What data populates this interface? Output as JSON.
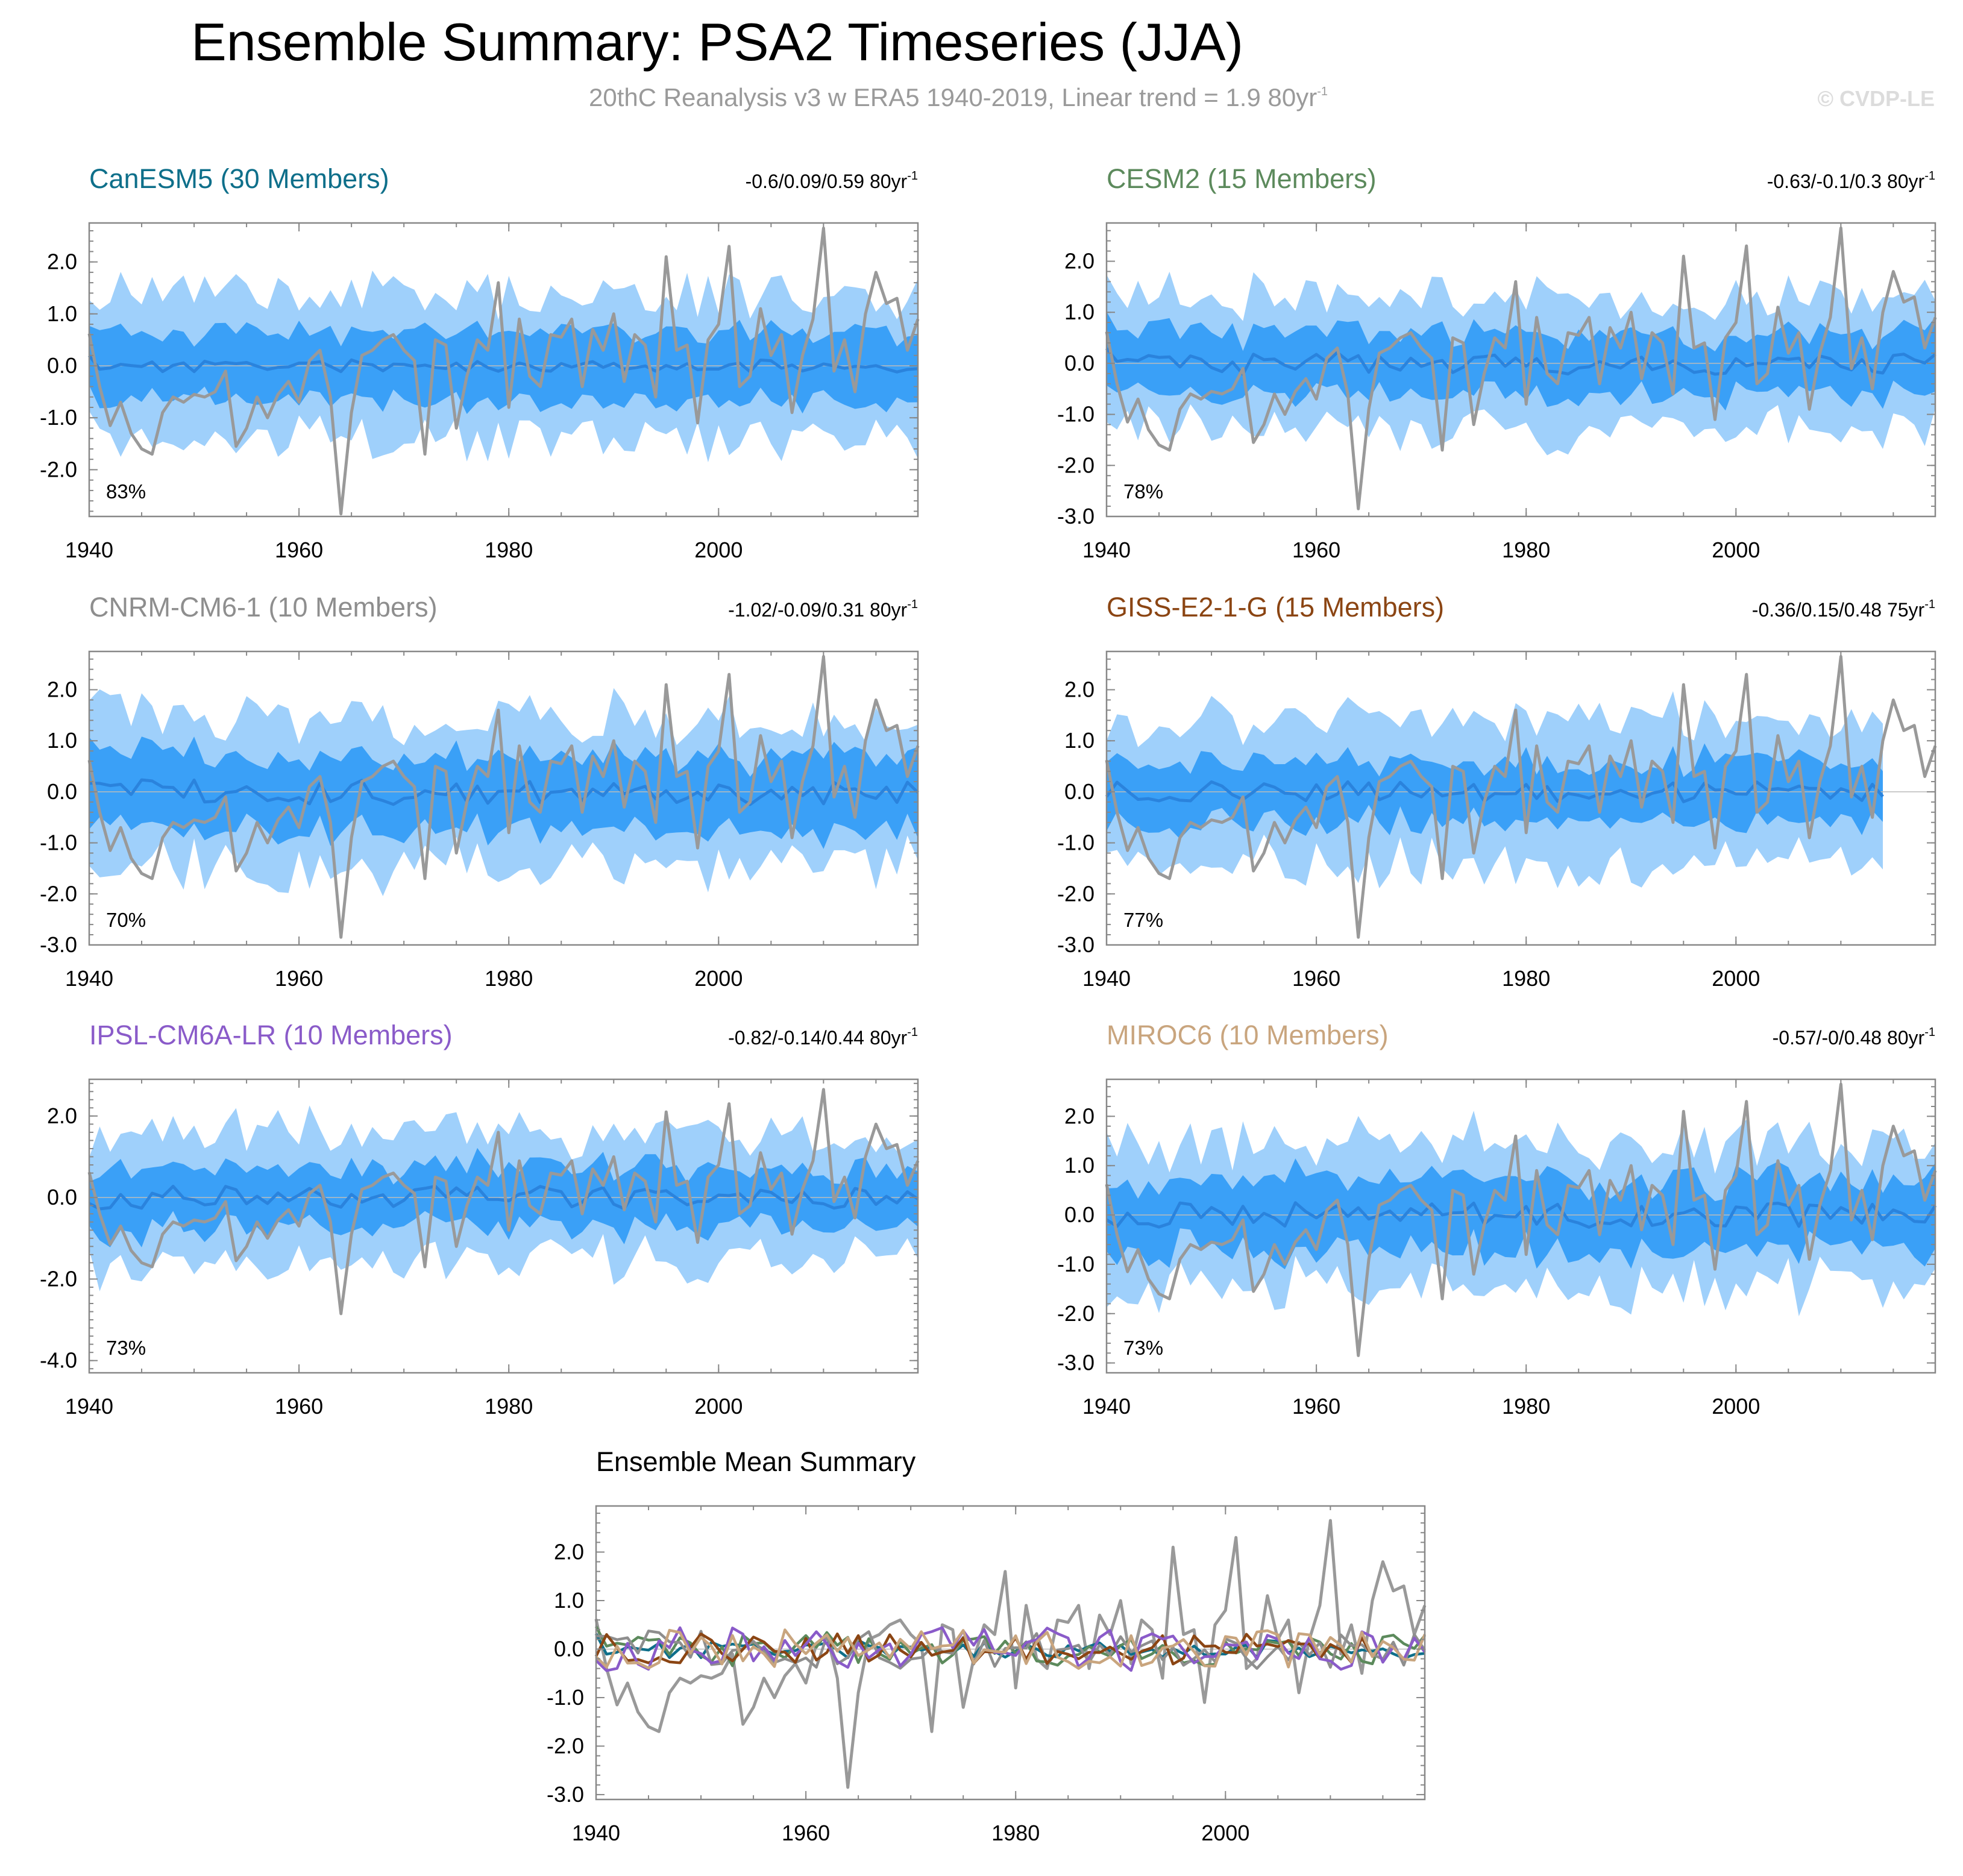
{
  "figure": {
    "title": "Ensemble Summary: PSA2 Timeseries (JJA)",
    "subtitle": "20thC Reanalysis v3 w ERA5 1940-2019, Linear trend = 1.9 80yr",
    "subtitle_sup": "-1",
    "watermark": "© CVDP-LE"
  },
  "colors": {
    "spread_outer": "#9fd0fb",
    "spread_inner": "#3aa0f7",
    "ensemble_mean": "#2a83dd",
    "observations": "#999999"
  },
  "chart_data": [
    {
      "type": "area",
      "title": "CanESM5 (30 Members)",
      "title_color": "#0e6f8a",
      "stat": "-0.6/0.09/0.59 80yr",
      "stat_sup": "-1",
      "percent_label": "83%",
      "x_range": [
        1940,
        2019
      ],
      "ylim": [
        -2.9,
        2.75
      ],
      "yticks": [
        2.0,
        1.0,
        0.0,
        -1.0,
        -2.0
      ],
      "ytick_labels": [
        "2.0",
        "1.0",
        "0.0",
        "-1.0",
        "-2.0"
      ],
      "xticks": [
        1940,
        1960,
        1980,
        2000
      ],
      "xtick_labels": [
        "1940",
        "1960",
        "1980",
        "2000"
      ],
      "seed": 11,
      "ens_mean_amp": 0.12,
      "inner_half": 0.65,
      "outer_half": 1.4,
      "xlabel": "",
      "ylabel": ""
    },
    {
      "type": "area",
      "title": "CESM2 (15 Members)",
      "title_color": "#5c8a5c",
      "stat": "-0.63/-0.1/0.3 80yr",
      "stat_sup": "-1",
      "percent_label": "78%",
      "x_range": [
        1940,
        2019
      ],
      "ylim": [
        -3.0,
        2.75
      ],
      "yticks": [
        2.0,
        1.0,
        0.0,
        -1.0,
        -2.0,
        -3.0
      ],
      "ytick_labels": [
        "2.0",
        "1.0",
        "0.0",
        "-1.0",
        "-2.0",
        "-3.0"
      ],
      "xticks": [
        1940,
        1960,
        1980,
        2000
      ],
      "xtick_labels": [
        "1940",
        "1960",
        "1980",
        "2000"
      ],
      "seed": 23,
      "ens_mean_amp": 0.22,
      "inner_half": 0.6,
      "outer_half": 1.3,
      "xlabel": "",
      "ylabel": ""
    },
    {
      "type": "area",
      "title": "CNRM-CM6-1 (10 Members)",
      "title_color": "#8e8e8e",
      "stat": "-1.02/-0.09/0.31 80yr",
      "stat_sup": "-1",
      "percent_label": "70%",
      "x_range": [
        1940,
        2019
      ],
      "ylim": [
        -3.0,
        2.75
      ],
      "yticks": [
        2.0,
        1.0,
        0.0,
        -1.0,
        -2.0,
        -3.0
      ],
      "ytick_labels": [
        "2.0",
        "1.0",
        "0.0",
        "-1.0",
        "-2.0",
        "-3.0"
      ],
      "xticks": [
        1940,
        1960,
        1980,
        2000
      ],
      "xtick_labels": [
        "1940",
        "1960",
        "1980",
        "2000"
      ],
      "seed": 37,
      "ens_mean_amp": 0.25,
      "inner_half": 0.7,
      "outer_half": 1.45,
      "xlabel": "",
      "ylabel": ""
    },
    {
      "type": "area",
      "title": "GISS-E2-1-G (15 Members)",
      "title_color": "#8b4513",
      "stat": "-0.36/0.15/0.48 75yr",
      "stat_sup": "-1",
      "percent_label": "77%",
      "x_range": [
        1940,
        2014
      ],
      "ylim": [
        -3.0,
        2.75
      ],
      "yticks": [
        2.0,
        1.0,
        0.0,
        -1.0,
        -2.0,
        -3.0
      ],
      "ytick_labels": [
        "2.0",
        "1.0",
        "0.0",
        "-1.0",
        "-2.0",
        "-3.0"
      ],
      "xticks": [
        1940,
        1960,
        1980,
        2000
      ],
      "xtick_labels": [
        "1940",
        "1960",
        "1980",
        "2000"
      ],
      "seed": 53,
      "ens_mean_amp": 0.2,
      "inner_half": 0.6,
      "outer_half": 1.4,
      "xlabel": "",
      "ylabel": ""
    },
    {
      "type": "area",
      "title": "IPSL-CM6A-LR (10 Members)",
      "title_color": "#8a5bc9",
      "stat": "-0.82/-0.14/0.44 80yr",
      "stat_sup": "-1",
      "percent_label": "73%",
      "x_range": [
        1940,
        2019
      ],
      "ylim": [
        -4.3,
        2.9
      ],
      "yticks": [
        2.0,
        0.0,
        -2.0,
        -4.0
      ],
      "ytick_labels": [
        "2.0",
        "0.0",
        "-2.0",
        "-4.0"
      ],
      "xticks": [
        1940,
        1960,
        1980,
        2000
      ],
      "xtick_labels": [
        "1940",
        "1960",
        "1980",
        "2000"
      ],
      "seed": 71,
      "ens_mean_amp": 0.28,
      "inner_half": 0.75,
      "outer_half": 1.6,
      "xlabel": "",
      "ylabel": ""
    },
    {
      "type": "area",
      "title": "MIROC6 (10 Members)",
      "title_color": "#c9a57e",
      "stat": "-0.57/-0/0.48 80yr",
      "stat_sup": "-1",
      "percent_label": "73%",
      "x_range": [
        1940,
        2019
      ],
      "ylim": [
        -3.2,
        2.75
      ],
      "yticks": [
        2.0,
        1.0,
        0.0,
        -1.0,
        -2.0,
        -3.0
      ],
      "ytick_labels": [
        "2.0",
        "1.0",
        "0.0",
        "-1.0",
        "-2.0",
        "-3.0"
      ],
      "xticks": [
        1940,
        1960,
        1980,
        2000
      ],
      "xtick_labels": [
        "1940",
        "1960",
        "1980",
        "2000"
      ],
      "seed": 89,
      "ens_mean_amp": 0.25,
      "inner_half": 0.7,
      "outer_half": 1.45,
      "xlabel": "",
      "ylabel": ""
    },
    {
      "type": "line",
      "title": "Ensemble Mean Summary",
      "title_color": "#000000",
      "x_range": [
        1940,
        2019
      ],
      "ylim": [
        -3.1,
        2.95
      ],
      "yticks": [
        2.0,
        1.0,
        0.0,
        -1.0,
        -2.0,
        -3.0
      ],
      "ytick_labels": [
        "2.0",
        "1.0",
        "0.0",
        "-1.0",
        "-2.0",
        "-3.0"
      ],
      "xticks": [
        1940,
        1960,
        1980,
        2000
      ],
      "xtick_labels": [
        "1940",
        "1960",
        "1980",
        "2000"
      ],
      "series_colors": [
        "#0e6f8a",
        "#5c8a5c",
        "#8e8e8e",
        "#8b4513",
        "#8a5bc9",
        "#c9a57e"
      ],
      "xlabel": "",
      "ylabel": ""
    }
  ],
  "observations": {
    "name": "20thC Reanalysis v3 w ERA5",
    "years": [
      1940,
      2019
    ],
    "values": [
      0.62,
      -0.4,
      -1.15,
      -0.7,
      -1.3,
      -1.6,
      -1.7,
      -0.9,
      -0.6,
      -0.7,
      -0.55,
      -0.6,
      -0.5,
      -0.1,
      -1.55,
      -1.2,
      -0.6,
      -1.0,
      -0.55,
      -0.3,
      -0.7,
      0.1,
      0.3,
      -0.6,
      -2.85,
      -0.9,
      0.2,
      0.3,
      0.5,
      0.6,
      0.3,
      0.1,
      -1.7,
      0.5,
      0.4,
      -1.2,
      -0.2,
      0.5,
      0.3,
      1.6,
      -0.8,
      0.9,
      -0.2,
      -0.4,
      0.6,
      0.55,
      0.9,
      -0.4,
      0.7,
      0.3,
      1.0,
      -0.3,
      0.6,
      0.4,
      -0.6,
      2.1,
      0.3,
      0.4,
      -1.1,
      0.5,
      0.8,
      2.3,
      -0.4,
      -0.2,
      1.1,
      0.2,
      0.6,
      -0.9,
      0.2,
      0.9,
      2.65,
      -0.1,
      0.5,
      -0.5,
      1.0,
      1.8,
      1.2,
      1.3,
      0.3,
      0.9
    ]
  }
}
